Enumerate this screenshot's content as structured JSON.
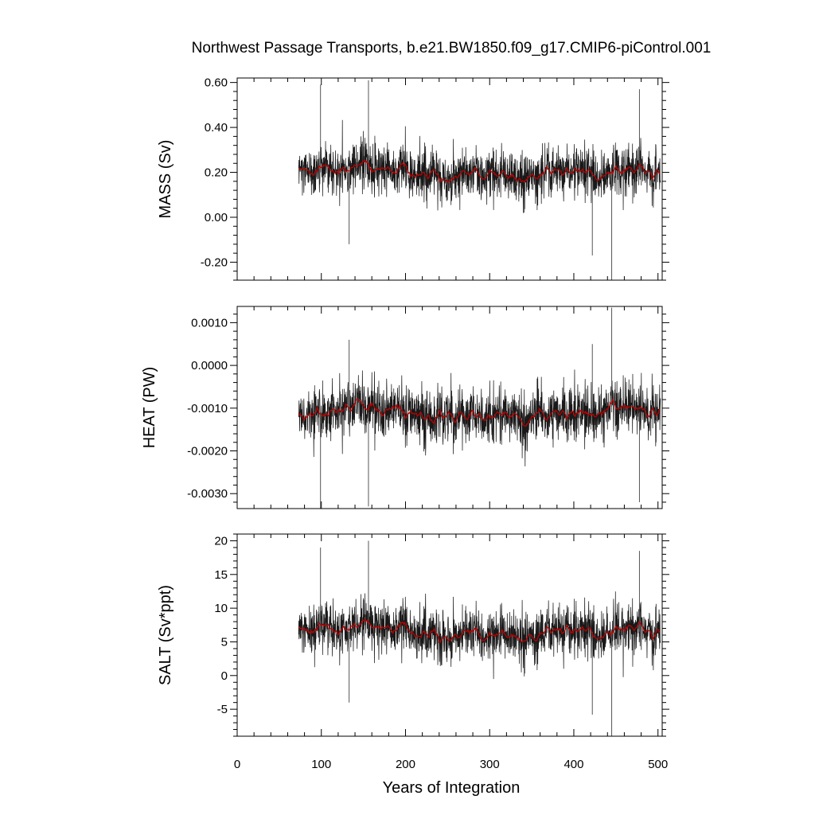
{
  "chart_data": {
    "type": "line",
    "title": "Northwest Passage Transports, b.e21.BW1850.f09_g17.CMIP6-piControl.001",
    "xlabel": "Years of Integration",
    "xlim": [
      0,
      505
    ],
    "x_ticks": [
      0,
      100,
      200,
      300,
      400,
      500
    ],
    "x_tick_labels": [
      "0",
      "100",
      "200",
      "300",
      "400",
      "500"
    ],
    "x_data_range": [
      73,
      503
    ],
    "grid": false,
    "colors": {
      "raw": "#000000",
      "smoothed": "#c00000"
    },
    "panels": [
      {
        "ylabel": "MASS (Sv)",
        "ylim": [
          -0.28,
          0.62
        ],
        "y_ticks": [
          -0.2,
          0.0,
          0.2,
          0.4,
          0.6
        ],
        "y_tick_labels": [
          "-0.20",
          "0.00",
          "0.20",
          "0.40",
          "0.60"
        ],
        "mean": 0.2,
        "noise": 0.075,
        "smooth_amp": 0.022,
        "spikes": [
          {
            "x": 99,
            "y": 0.59
          },
          {
            "x": 156,
            "y": 0.61
          },
          {
            "x": 133,
            "y": -0.12
          },
          {
            "x": 422,
            "y": -0.17
          },
          {
            "x": 445,
            "y": -0.28
          },
          {
            "x": 478,
            "y": 0.57
          }
        ]
      },
      {
        "ylabel": "HEAT (PW)",
        "ylim": [
          -0.00335,
          0.00138
        ],
        "y_ticks": [
          -0.003,
          -0.002,
          -0.001,
          0.0,
          0.001
        ],
        "y_tick_labels": [
          "-0.0030",
          "-0.0020",
          "-0.0010",
          "0.0000",
          "0.0010"
        ],
        "mean": -0.0011,
        "noise": 0.00042,
        "smooth_amp": 0.00012,
        "spikes": [
          {
            "x": 99,
            "y": -0.00335
          },
          {
            "x": 156,
            "y": -0.0033
          },
          {
            "x": 133,
            "y": 0.0006
          },
          {
            "x": 422,
            "y": 0.0005
          },
          {
            "x": 445,
            "y": 0.00135
          },
          {
            "x": 478,
            "y": -0.0032
          }
        ]
      },
      {
        "ylabel": "SALT (Sv*ppt)",
        "ylim": [
          -9,
          21
        ],
        "y_ticks": [
          -5,
          0,
          5,
          10,
          15,
          20
        ],
        "y_tick_labels": [
          "-5",
          "0",
          "5",
          "10",
          "15",
          "20"
        ],
        "mean": 6.5,
        "noise": 2.5,
        "smooth_amp": 0.75,
        "spikes": [
          {
            "x": 99,
            "y": 19
          },
          {
            "x": 156,
            "y": 20
          },
          {
            "x": 133,
            "y": -4
          },
          {
            "x": 422,
            "y": -5.8
          },
          {
            "x": 445,
            "y": -9
          },
          {
            "x": 478,
            "y": 18.5
          }
        ]
      }
    ]
  }
}
